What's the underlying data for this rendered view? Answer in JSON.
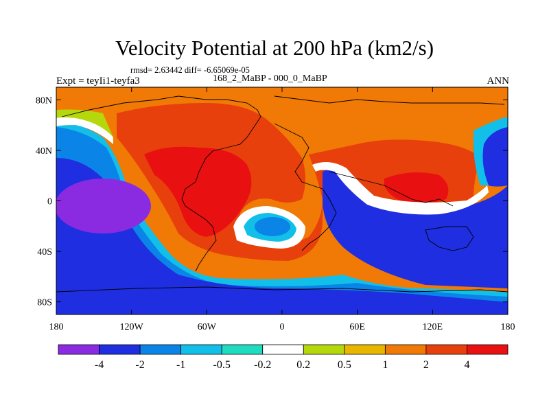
{
  "chart_data": {
    "type": "heatmap",
    "title": "Velocity Potential at 200 hPa (km2/s)",
    "stats_label": "rmsd= 2.63442 diff= -6.65069e-05",
    "left_label": "Expt = teyIi1-teyfa3",
    "center_label": "168_2_MaBP - 000_0_MaBP",
    "right_label": "ANN",
    "x_ticks": [
      "180",
      "120W",
      "60W",
      "0",
      "60E",
      "120E",
      "180"
    ],
    "y_ticks": [
      "80N",
      "40N",
      "0",
      "40S",
      "80S"
    ],
    "x_range": [
      -180,
      180
    ],
    "y_range": [
      -90,
      90
    ],
    "levels": [
      "-4",
      "-2",
      "-1",
      "-0.5",
      "-0.2",
      "0.2",
      "0.5",
      "1",
      "2",
      "4"
    ],
    "colors": [
      "#8a2be2",
      "#1e2ee0",
      "#0a84e6",
      "#12bfe8",
      "#1fdcc0",
      "#ffffff",
      "#b5d80c",
      "#e8b500",
      "#f07a05",
      "#e8400c",
      "#e81010"
    ],
    "features": [
      {
        "name": "western-pacific-minimum",
        "lon": -150,
        "lat": 5,
        "level": "-4"
      },
      {
        "name": "americas-atlantic-maximum",
        "lon": -60,
        "lat": 15,
        "level": "4"
      },
      {
        "name": "south-atlantic-minimum",
        "lon": -8,
        "lat": -22,
        "level": "-2"
      },
      {
        "name": "asian-maximum",
        "lon": 120,
        "lat": 15,
        "level": "4"
      },
      {
        "name": "indian-ocean-minimum",
        "lon": 80,
        "lat": -30,
        "level": "-2"
      },
      {
        "name": "southern-ocean-band",
        "lon": 0,
        "lat": -70,
        "level": "-1"
      }
    ]
  }
}
